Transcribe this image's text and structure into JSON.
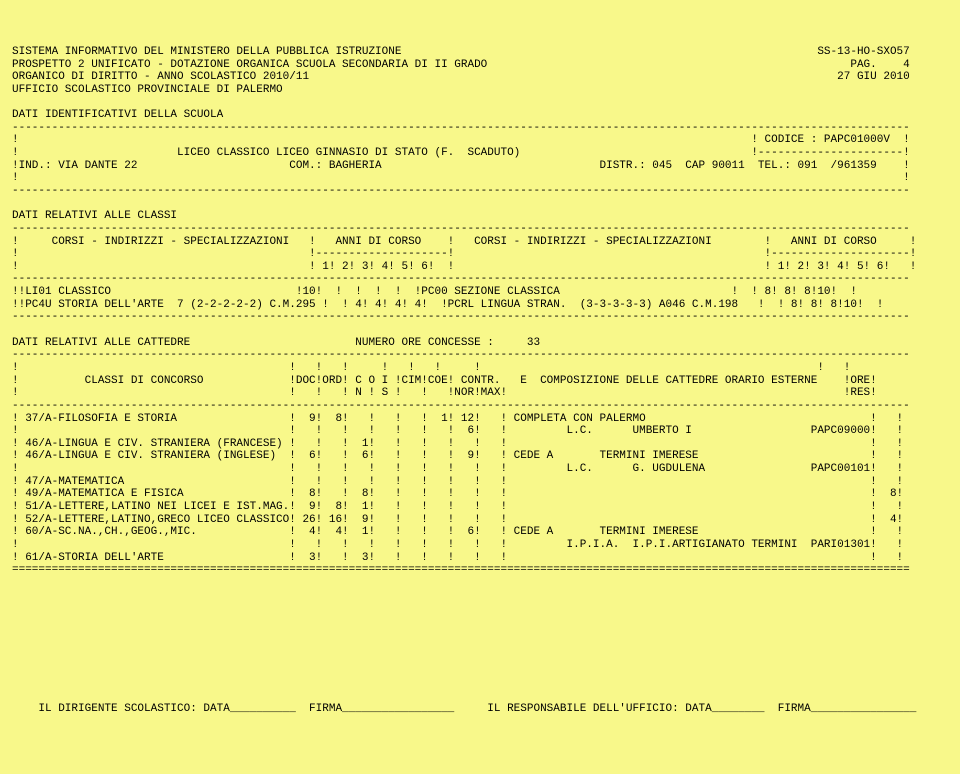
{
  "header": {
    "line1_left": "SISTEMA INFORMATIVO DEL MINISTERO DELLA PUBBLICA ISTRUZIONE",
    "line1_right": "SS-13-HO-SXO57",
    "line2_left": "PROSPETTO 2 UNIFICATO - DOTAZIONE ORGANICA SCUOLA SECONDARIA DI II GRADO",
    "line2_right": "PAG.    4",
    "line3_left": "ORGANICO DI DIRITTO - ANNO SCOLASTICO 2010/11",
    "line3_right": "27 GIU 2010",
    "line4": "UFFICIO SCOLASTICO PROVINCIALE DI PALERMO"
  },
  "school_id": {
    "title": "DATI IDENTIFICATIVI DELLA SCUOLA",
    "codice_label": "CODICE : PAPC01000V",
    "school_name": "LICEO CLASSICO LICEO GINNASIO DI STATO (F.  SCADUTO)",
    "ind_label": "IND.: VIA DANTE 22",
    "com_label": "COM.: BAGHERIA",
    "distr_label": "DISTR.: 045  CAP 90011  TEL.: 091  /961359"
  },
  "classi": {
    "title": "DATI RELATIVI ALLE CLASSI",
    "col1": "CORSI - INDIRIZZI - SPECIALIZZAZIONI",
    "col2": "ANNI DI CORSO",
    "col3": "CORSI - INDIRIZZI - SPECIALIZZAZIONI",
    "col4": "ANNI DI CORSO",
    "years": "1! 2! 3! 4! 5! 6!",
    "row1_a": "LI01 CLASSICO",
    "row1_a_val": "10",
    "row1_b": "PC00 SEZIONE CLASSICA",
    "row1_b_val": "8! 8! 8!10!",
    "row2_a": "PC4U STORIA DELL'ARTE  7 (2-2-2-2-2) C.M.295",
    "row2_a_val": "4! 4! 4! 4!",
    "row2_b": "PCRL LINGUA STRAN.  (3-3-3-3-3) A046 C.M.198",
    "row2_b_val": "8! 8! 8!10!"
  },
  "cattedre": {
    "title": "DATI RELATIVI ALLE CATTEDRE",
    "ore_concesse": "NUMERO ORE CONCESSE :     33",
    "col_classi": "CLASSI DI CONCORSO",
    "col_doc": "DOC",
    "col_ord": "ORD",
    "col_coi": "C O I",
    "col_cim": "CIM",
    "col_coe": "COE",
    "col_contr": "CONTR.",
    "col_comp": "E  COMPOSIZIONE DELLE CATTEDRE ORARIO ESTERNE",
    "col_ore": "ORE",
    "sub_ns": "N ! S",
    "sub_normax": "NOR!MAX!",
    "sub_res": "RES"
  },
  "rows": [
    {
      "name": "37/A-FILOSOFIA E STORIA",
      "doc": "9",
      "ord": "8",
      "coi_n": "",
      "coi_s": "",
      "cim": "",
      "coe": "1",
      "nor": "12",
      "max": "",
      "comp": "COMPLETA CON PALERMO",
      "ore": "",
      "res": ""
    },
    {
      "name": "",
      "doc": "",
      "ord": "",
      "coi_n": "",
      "coi_s": "",
      "cim": "",
      "coe": "",
      "nor": "6",
      "max": "",
      "comp": "        L.C.      UMBERTO I                  PAPC09000Q",
      "ore": "",
      "res": ""
    },
    {
      "name": "46/A-LINGUA E CIV. STRANIERA (FRANCESE)",
      "doc": "",
      "ord": "",
      "coi_n": "1",
      "coi_s": "",
      "cim": "",
      "coe": "",
      "nor": "",
      "max": "",
      "comp": "",
      "ore": "",
      "res": ""
    },
    {
      "name": "46/A-LINGUA E CIV. STRANIERA (INGLESE)",
      "doc": "6",
      "ord": "",
      "coi_n": "6",
      "coi_s": "",
      "cim": "",
      "coe": "",
      "nor": "9",
      "max": "",
      "comp": "CEDE A       TERMINI IMERESE",
      "ore": "",
      "res": ""
    },
    {
      "name": "",
      "doc": "",
      "ord": "",
      "coi_n": "",
      "coi_s": "",
      "cim": "",
      "coe": "",
      "nor": "",
      "max": "",
      "comp": "        L.C.      G. UGDULENA                PAPC001015",
      "ore": "",
      "res": ""
    },
    {
      "name": "47/A-MATEMATICA",
      "doc": "",
      "ord": "",
      "coi_n": "",
      "coi_s": "",
      "cim": "",
      "coe": "",
      "nor": "",
      "max": "",
      "comp": "",
      "ore": "",
      "res": ""
    },
    {
      "name": "49/A-MATEMATICA E FISICA",
      "doc": "8",
      "ord": "",
      "coi_n": "8",
      "coi_s": "",
      "cim": "",
      "coe": "",
      "nor": "",
      "max": "",
      "comp": "",
      "ore": "",
      "res": "8"
    },
    {
      "name": "51/A-LETTERE,LATINO NEI LICEI E IST.MAG.",
      "doc": "9",
      "ord": "8",
      "coi_n": "1",
      "coi_s": "",
      "cim": "",
      "coe": "",
      "nor": "",
      "max": "",
      "comp": "",
      "ore": "",
      "res": ""
    },
    {
      "name": "52/A-LETTERE,LATINO,GRECO LICEO CLASSICO",
      "doc": "26",
      "ord": "16",
      "coi_n": "9",
      "coi_s": "",
      "cim": "",
      "coe": "",
      "nor": "",
      "max": "",
      "comp": "",
      "ore": "",
      "res": "4"
    },
    {
      "name": "60/A-SC.NA.,CH.,GEOG.,MIC.",
      "doc": "4",
      "ord": "4",
      "coi_n": "1",
      "coi_s": "",
      "cim": "",
      "coe": "",
      "nor": "6",
      "max": "",
      "comp": "CEDE A       TERMINI IMERESE",
      "ore": "",
      "res": ""
    },
    {
      "name": "",
      "doc": "",
      "ord": "",
      "coi_n": "",
      "coi_s": "",
      "cim": "",
      "coe": "",
      "nor": "",
      "max": "",
      "comp": "        I.P.I.A.  I.P.I.ARTIGIANATO TERMINI  PARI01301Q",
      "ore": "",
      "res": ""
    },
    {
      "name": "61/A-STORIA DELL'ARTE",
      "doc": "3",
      "ord": "",
      "coi_n": "3",
      "coi_s": "",
      "cim": "",
      "coe": "",
      "nor": "",
      "max": "",
      "comp": "",
      "ore": "",
      "res": ""
    }
  ],
  "footer": {
    "left": "IL DIRIGENTE SCOLASTICO: DATA__________  FIRMA_________________",
    "right": "IL RESPONSABILE DELL'UFFICIO: DATA________  FIRMA________________"
  }
}
